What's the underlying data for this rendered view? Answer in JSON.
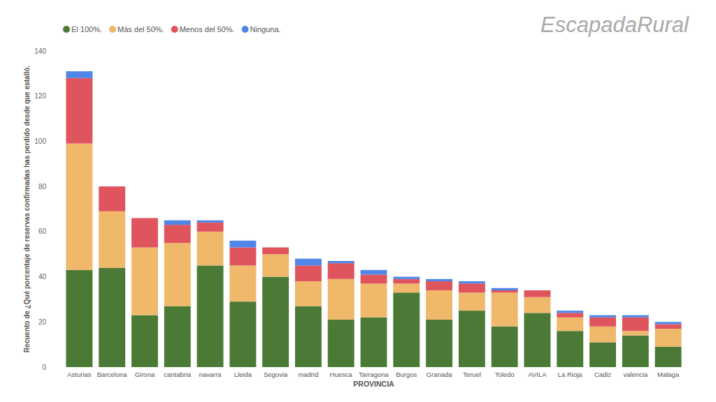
{
  "chart_data": {
    "type": "bar",
    "stacked": true,
    "legend": "top-left",
    "grid": false,
    "x_label": "PROVINCIA",
    "y_label": "Recuento de ¿Qué porcentaje de reservas confirmadas has perdido desde que estalló.",
    "annotations": [
      "EscapadaRural"
    ],
    "categories": [
      "Asturias",
      "Barcelona",
      "Girona",
      "cantabria",
      "navarra",
      "Lleida",
      "Segovia",
      "madrid",
      "Huesca",
      "Tarragona",
      "Burgos",
      "Granada",
      "Teruel",
      "Toledo",
      "AVILA",
      "La Rioja",
      "Cadiz",
      "valencia",
      "Malaga"
    ],
    "ylim": [
      0,
      140
    ],
    "yticks": [
      0,
      20,
      40,
      60,
      80,
      100,
      120,
      140
    ],
    "series": [
      {
        "name": "El 100%.",
        "color": "#4b7a36",
        "values": [
          43,
          44,
          23,
          27,
          45,
          29,
          40,
          27,
          21,
          22,
          33,
          21,
          25,
          18,
          24,
          16,
          11,
          14,
          9
        ]
      },
      {
        "name": "Más del 50%.",
        "color": "#efb86a",
        "values": [
          56,
          25,
          30,
          28,
          15,
          16,
          10,
          11,
          18,
          15,
          4,
          13,
          8,
          15,
          7,
          6,
          7,
          2,
          8
        ]
      },
      {
        "name": "Menos del 50%.",
        "color": "#e0545e",
        "values": [
          29,
          11,
          13,
          8,
          4,
          8,
          3,
          7,
          7,
          4,
          2,
          4,
          4,
          1,
          3,
          2,
          4,
          6,
          2
        ]
      },
      {
        "name": "Ninguna.",
        "color": "#4f86e8",
        "values": [
          3,
          0,
          0,
          2,
          1,
          3,
          0,
          3,
          1,
          2,
          1,
          1,
          1,
          1,
          0,
          1,
          1,
          1,
          1
        ]
      }
    ]
  }
}
